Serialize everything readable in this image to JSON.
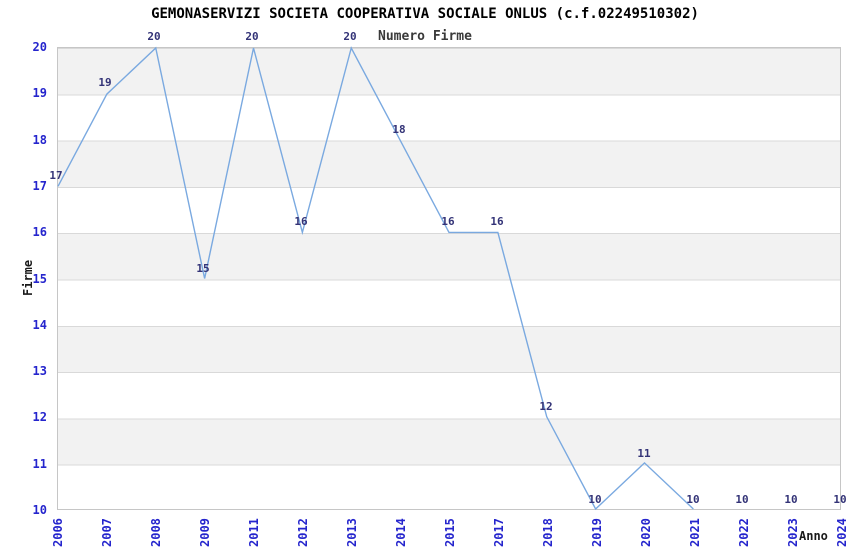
{
  "chart_data": {
    "type": "line",
    "title": "GEMONASERVIZI SOCIETA COOPERATIVA SOCIALE ONLUS (c.f.02249510302)",
    "subtitle": "Numero Firme",
    "xlabel": "Anno",
    "ylabel": "Firme",
    "categories": [
      "2006",
      "2007",
      "2008",
      "2009",
      "2011",
      "2012",
      "2013",
      "2014",
      "2015",
      "2017",
      "2018",
      "2019",
      "2020",
      "2021",
      "2022",
      "2023",
      "2024"
    ],
    "values": [
      17,
      19,
      20,
      15,
      20,
      16,
      20,
      18,
      16,
      16,
      12,
      10,
      11,
      10,
      10,
      10,
      10
    ],
    "ylim": [
      10,
      20
    ],
    "yticks": [
      20,
      19,
      18,
      17,
      16,
      15,
      14,
      13,
      12,
      11,
      10
    ],
    "grid": "alternating horizontal bands, horizontal gridlines every 1 unit",
    "legend": "none",
    "markers": "none, value labels above each point",
    "line_visible_through_category": "2021",
    "colors": {
      "line": "#7aa9e0",
      "tick_label": "#2525cd",
      "data_label": "#333377",
      "band_gray": "#f2f2f2",
      "gridline": "#d9d9d9",
      "plot_border": "#c6c6c6",
      "title_text": "#000000",
      "subtitle_text": "#3a3a3a"
    }
  }
}
